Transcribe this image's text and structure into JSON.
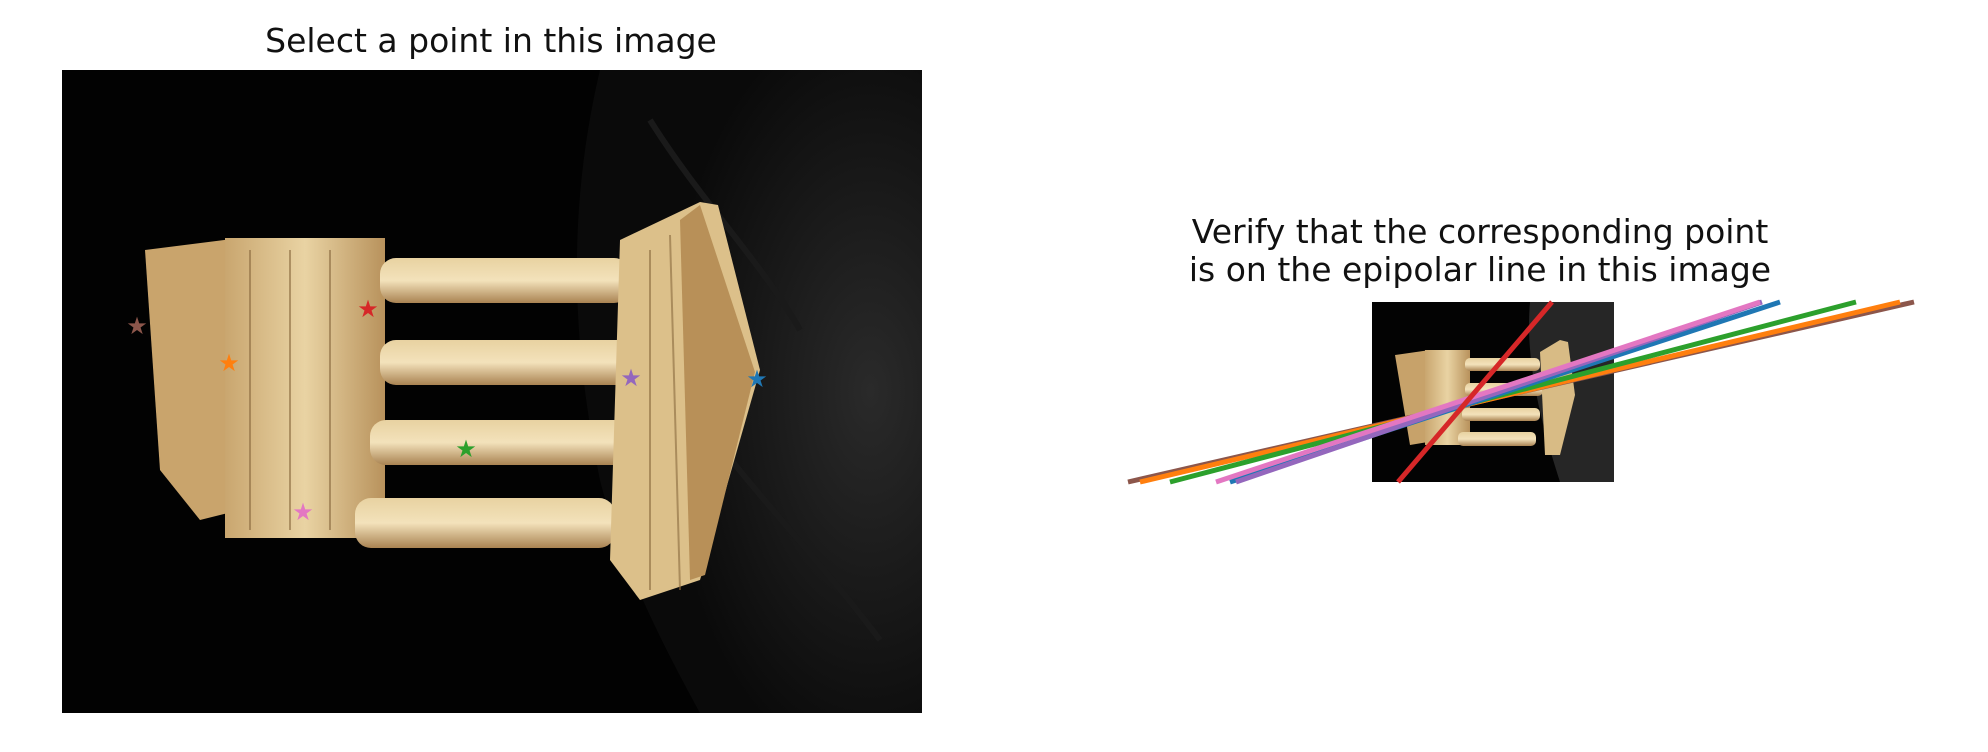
{
  "figure": {
    "left_title": "Select a point in this image",
    "right_title_line1": "Verify that the corresponding point",
    "right_title_line2": "is on the epipolar line in this image"
  },
  "points": [
    {
      "name": "blue-star",
      "color": "#1f77b4"
    },
    {
      "name": "orange-star",
      "color": "#ff7f0e"
    },
    {
      "name": "green-star",
      "color": "#2ca02c"
    },
    {
      "name": "red-star",
      "color": "#d62728"
    },
    {
      "name": "purple-star",
      "color": "#9467bd"
    },
    {
      "name": "brown-star",
      "color": "#8c564b"
    },
    {
      "name": "pink-star",
      "color": "#e377c2"
    }
  ],
  "epipolar_lines": [
    {
      "name": "blue-epipolar-line",
      "color": "#1f77b4"
    },
    {
      "name": "orange-epipolar-line",
      "color": "#ff7f0e"
    },
    {
      "name": "green-epipolar-line",
      "color": "#2ca02c"
    },
    {
      "name": "red-epipolar-line",
      "color": "#d62728"
    },
    {
      "name": "purple-epipolar-line",
      "color": "#9467bd"
    },
    {
      "name": "brown-epipolar-line",
      "color": "#8c564b"
    },
    {
      "name": "pink-epipolar-line",
      "color": "#e377c2"
    }
  ]
}
